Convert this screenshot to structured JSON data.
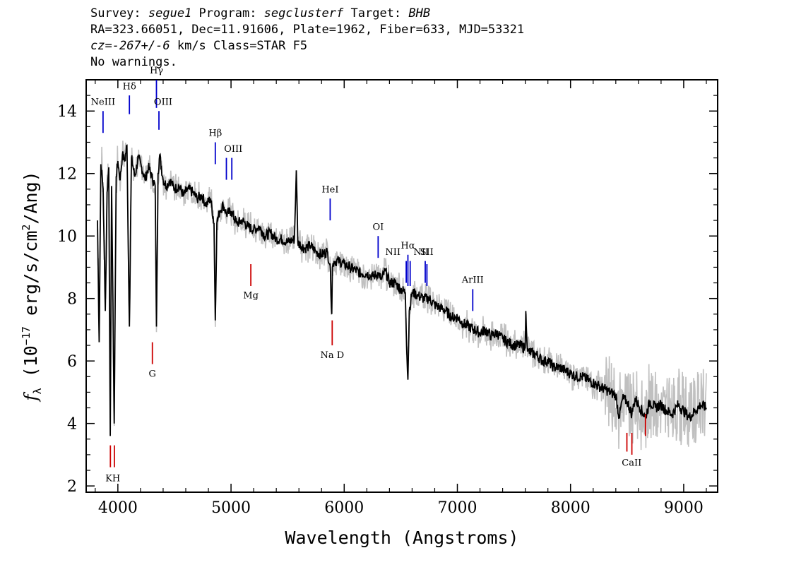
{
  "header": {
    "survey_label": "Survey: ",
    "survey": "segue1",
    "program_label": " Program: ",
    "program": "segclusterf",
    "target_label": " Target: ",
    "target": "BHB",
    "line2": "RA=323.66051, Dec=11.91606, Plate=1962, Fiber=633, MJD=53321",
    "cz_label": "cz=",
    "cz_value": "-267+/-6",
    "cz_rest": " km/s Class=STAR F5",
    "warnings": "No warnings."
  },
  "chart_data": {
    "type": "line",
    "xlabel": "Wavelength (Angstroms)",
    "ylabel_prefix": "f",
    "ylabel_sub": "λ",
    "ylabel_units_open": " (10",
    "ylabel_exp": "−17",
    "ylabel_units_mid": " erg/s/cm",
    "ylabel_exp2": "2",
    "ylabel_units_close": "/Ang)",
    "xlim": [
      3720,
      9300
    ],
    "ylim": [
      1.8,
      15.0
    ],
    "xticks": [
      4000,
      5000,
      6000,
      7000,
      8000,
      9000
    ],
    "xtick_labels": [
      "4000",
      "5000",
      "6000",
      "7000",
      "8000",
      "9000"
    ],
    "yticks": [
      2,
      4,
      6,
      8,
      10,
      12,
      14
    ],
    "ytick_labels": [
      "2",
      "4",
      "6",
      "8",
      "10",
      "12",
      "14"
    ],
    "colors": {
      "flux": "#000000",
      "error": "#c0c0c0",
      "emission": "#0000cc",
      "absorption": "#cc0000"
    },
    "series": [
      {
        "values": [
          [
            3820,
            10.5
          ],
          [
            3835,
            6.6
          ],
          [
            3850,
            12.3
          ],
          [
            3870,
            11.5
          ],
          [
            3889,
            7.6
          ],
          [
            3905,
            11.4
          ],
          [
            3920,
            12.2
          ],
          [
            3933,
            3.6
          ],
          [
            3945,
            11.6
          ],
          [
            3968,
            4.0
          ],
          [
            3985,
            11.9
          ],
          [
            4000,
            12.4
          ],
          [
            4020,
            11.8
          ],
          [
            4040,
            12.6
          ],
          [
            4060,
            12.4
          ],
          [
            4080,
            12.9
          ],
          [
            4102,
            7.1
          ],
          [
            4120,
            12.5
          ],
          [
            4150,
            11.9
          ],
          [
            4180,
            12.5
          ],
          [
            4210,
            12.2
          ],
          [
            4240,
            11.8
          ],
          [
            4270,
            12.2
          ],
          [
            4300,
            11.9
          ],
          [
            4330,
            11.6
          ],
          [
            4341,
            7.1
          ],
          [
            4355,
            12.0
          ],
          [
            4370,
            12.6
          ],
          [
            4400,
            11.8
          ],
          [
            4430,
            11.6
          ],
          [
            4460,
            11.8
          ],
          [
            4500,
            11.5
          ],
          [
            4540,
            11.6
          ],
          [
            4580,
            11.3
          ],
          [
            4620,
            11.5
          ],
          [
            4660,
            11.4
          ],
          [
            4700,
            11.2
          ],
          [
            4740,
            11.3
          ],
          [
            4780,
            11.0
          ],
          [
            4820,
            11.2
          ],
          [
            4850,
            10.4
          ],
          [
            4861,
            7.3
          ],
          [
            4875,
            10.4
          ],
          [
            4900,
            10.8
          ],
          [
            4930,
            11.0
          ],
          [
            4960,
            10.7
          ],
          [
            5000,
            10.8
          ],
          [
            5050,
            10.4
          ],
          [
            5100,
            10.5
          ],
          [
            5150,
            10.3
          ],
          [
            5200,
            10.2
          ],
          [
            5250,
            10.3
          ],
          [
            5300,
            10.0
          ],
          [
            5350,
            10.1
          ],
          [
            5400,
            9.9
          ],
          [
            5450,
            9.9
          ],
          [
            5500,
            9.8
          ],
          [
            5560,
            9.9
          ],
          [
            5577,
            12.1
          ],
          [
            5590,
            9.8
          ],
          [
            5650,
            9.6
          ],
          [
            5700,
            9.7
          ],
          [
            5750,
            9.5
          ],
          [
            5800,
            9.4
          ],
          [
            5850,
            9.5
          ],
          [
            5875,
            9.1
          ],
          [
            5890,
            7.5
          ],
          [
            5896,
            9.0
          ],
          [
            5910,
            9.2
          ],
          [
            5950,
            9.2
          ],
          [
            6000,
            9.1
          ],
          [
            6050,
            9.0
          ],
          [
            6100,
            8.9
          ],
          [
            6150,
            8.8
          ],
          [
            6200,
            8.8
          ],
          [
            6250,
            8.7
          ],
          [
            6300,
            8.8
          ],
          [
            6330,
            8.6
          ],
          [
            6363,
            8.9
          ],
          [
            6400,
            8.5
          ],
          [
            6450,
            8.5
          ],
          [
            6500,
            8.3
          ],
          [
            6540,
            8.2
          ],
          [
            6555,
            6.1
          ],
          [
            6563,
            5.4
          ],
          [
            6575,
            7.6
          ],
          [
            6600,
            8.2
          ],
          [
            6650,
            8.1
          ],
          [
            6700,
            8.0
          ],
          [
            6750,
            8.0
          ],
          [
            6800,
            7.8
          ],
          [
            6850,
            7.7
          ],
          [
            6900,
            7.6
          ],
          [
            6950,
            7.4
          ],
          [
            7000,
            7.4
          ],
          [
            7050,
            7.2
          ],
          [
            7100,
            7.1
          ],
          [
            7150,
            7.0
          ],
          [
            7200,
            6.9
          ],
          [
            7250,
            7.0
          ],
          [
            7300,
            6.8
          ],
          [
            7350,
            6.9
          ],
          [
            7400,
            6.7
          ],
          [
            7450,
            6.6
          ],
          [
            7500,
            6.5
          ],
          [
            7560,
            6.5
          ],
          [
            7600,
            6.4
          ],
          [
            7605,
            7.6
          ],
          [
            7620,
            6.3
          ],
          [
            7700,
            6.2
          ],
          [
            7750,
            6.0
          ],
          [
            7800,
            6.0
          ],
          [
            7850,
            5.8
          ],
          [
            7900,
            5.8
          ],
          [
            7950,
            5.7
          ],
          [
            8000,
            5.6
          ],
          [
            8050,
            5.5
          ],
          [
            8100,
            5.5
          ],
          [
            8150,
            5.4
          ],
          [
            8200,
            5.3
          ],
          [
            8250,
            5.2
          ],
          [
            8300,
            5.1
          ],
          [
            8350,
            5.0
          ],
          [
            8400,
            4.9
          ],
          [
            8430,
            4.2
          ],
          [
            8460,
            4.8
          ],
          [
            8500,
            4.7
          ],
          [
            8542,
            4.3
          ],
          [
            8570,
            4.8
          ],
          [
            8600,
            4.6
          ],
          [
            8662,
            4.2
          ],
          [
            8700,
            4.7
          ],
          [
            8750,
            4.5
          ],
          [
            8800,
            4.6
          ],
          [
            8850,
            4.4
          ],
          [
            8900,
            4.3
          ],
          [
            8950,
            4.6
          ],
          [
            9000,
            4.4
          ],
          [
            9050,
            4.2
          ],
          [
            9100,
            4.4
          ],
          [
            9150,
            4.6
          ],
          [
            9200,
            4.5
          ]
        ]
      }
    ],
    "emission_lines": [
      {
        "label": "NeIII",
        "wavelength": 3869,
        "y_top": 14.0,
        "y_bot": 13.3
      },
      {
        "label": "Hδ",
        "wavelength": 4102,
        "y_top": 14.5,
        "y_bot": 13.9
      },
      {
        "label": "Hγ",
        "wavelength": 4341,
        "y_top": 15.0,
        "y_bot": 14.1
      },
      {
        "label": "OIII",
        "wavelength": 4363,
        "y_top": 14.0,
        "y_bot": 13.4
      },
      {
        "label": "Hβ",
        "wavelength": 4861,
        "y_top": 13.0,
        "y_bot": 12.3
      },
      {
        "label": "OIII",
        "wavelength": 4959,
        "y_top": 12.5,
        "y_bot": 11.8
      },
      {
        "label": "OIII",
        "wavelength": 5007,
        "y_top": 12.5,
        "y_bot": 11.8
      },
      {
        "label": "HeI",
        "wavelength": 5876,
        "y_top": 11.2,
        "y_bot": 10.5
      },
      {
        "label": "OI",
        "wavelength": 6300,
        "y_top": 10.0,
        "y_bot": 9.3
      },
      {
        "label": "NII",
        "wavelength": 6548,
        "y_top": 9.2,
        "y_bot": 8.5
      },
      {
        "label": "Hα",
        "wavelength": 6563,
        "y_top": 9.4,
        "y_bot": 8.4
      },
      {
        "label": "NII",
        "wavelength": 6583,
        "y_top": 9.2,
        "y_bot": 8.4
      },
      {
        "label": "SII",
        "wavelength": 6716,
        "y_top": 9.2,
        "y_bot": 8.5
      },
      {
        "label": "SII",
        "wavelength": 6731,
        "y_top": 9.1,
        "y_bot": 8.4
      },
      {
        "label": "ArIII",
        "wavelength": 7136,
        "y_top": 8.3,
        "y_bot": 7.6
      }
    ],
    "absorption_lines": [
      {
        "label": "K",
        "wavelength": 3934,
        "y_top": 3.3,
        "y_bot": 2.6
      },
      {
        "label": "H",
        "wavelength": 3969,
        "y_top": 3.3,
        "y_bot": 2.6
      },
      {
        "label": "G",
        "wavelength": 4305,
        "y_top": 6.6,
        "y_bot": 5.9
      },
      {
        "label": "Mg",
        "wavelength": 5175,
        "y_top": 9.1,
        "y_bot": 8.4
      },
      {
        "label": "Na D",
        "wavelength": 5894,
        "y_top": 7.3,
        "y_bot": 6.5
      },
      {
        "label": "CaII",
        "wavelength": 8498,
        "y_top": 3.7,
        "y_bot": 3.1
      },
      {
        "label": "CaII",
        "wavelength": 8542,
        "y_top": 3.7,
        "y_bot": 3.0
      },
      {
        "label": "CaII",
        "wavelength": 8662,
        "y_top": 4.3,
        "y_bot": 3.6
      }
    ],
    "line_labels": [
      {
        "text": "NeIII",
        "x": 3869,
        "y": 14.2,
        "color": "emission"
      },
      {
        "text": "Hδ",
        "x": 4102,
        "y": 14.7,
        "color": "emission"
      },
      {
        "text": "Hγ",
        "x": 4341,
        "y": 15.2,
        "color": "emission"
      },
      {
        "text": "OIII",
        "x": 4400,
        "y": 14.2,
        "color": "emission"
      },
      {
        "text": "Hβ",
        "x": 4861,
        "y": 13.2,
        "color": "emission"
      },
      {
        "text": "OIII",
        "x": 5020,
        "y": 12.7,
        "color": "emission"
      },
      {
        "text": "HeI",
        "x": 5876,
        "y": 11.4,
        "color": "emission"
      },
      {
        "text": "OI",
        "x": 6300,
        "y": 10.2,
        "color": "emission"
      },
      {
        "text": "NII",
        "x": 6430,
        "y": 9.4,
        "color": "emission"
      },
      {
        "text": "Hα",
        "x": 6563,
        "y": 9.6,
        "color": "emission"
      },
      {
        "text": "NII",
        "x": 6680,
        "y": 9.4,
        "color": "emission"
      },
      {
        "text": "SII",
        "x": 6730,
        "y": 9.4,
        "color": "emission"
      },
      {
        "text": "ArIII",
        "x": 7136,
        "y": 8.5,
        "color": "emission"
      },
      {
        "text": "KH",
        "x": 3955,
        "y": 2.15,
        "color": "absorption"
      },
      {
        "text": "G",
        "x": 4305,
        "y": 5.5,
        "color": "absorption"
      },
      {
        "text": "Mg",
        "x": 5175,
        "y": 8.0,
        "color": "absorption"
      },
      {
        "text": "Na D",
        "x": 5894,
        "y": 6.1,
        "color": "absorption"
      },
      {
        "text": "CaII",
        "x": 8540,
        "y": 2.65,
        "color": "absorption"
      }
    ]
  }
}
